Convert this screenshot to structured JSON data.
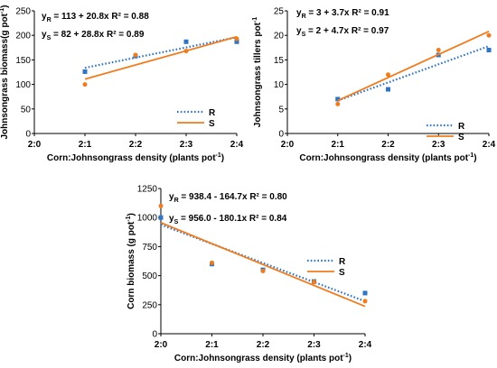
{
  "figure": {
    "axis_color": "#000000",
    "colors": {
      "R": "#2f75c6",
      "S": "#f07c1e"
    }
  },
  "chart_data": [
    {
      "id": "jg-biomass",
      "type": "scatter",
      "xlabel": "Corn:Johnsongrass density (plants pot",
      "xlabel_sup": "-1",
      "xlabel_tail": ")",
      "ylabel": "Johnsongrass biomass(g pot",
      "ylabel_sup": "-1",
      "ylabel_tail": ")",
      "categories": [
        "2:0",
        "2:1",
        "2:2",
        "2:3",
        "2:4"
      ],
      "ylim": [
        0,
        250
      ],
      "yticks": [
        0,
        50,
        100,
        150,
        200,
        250
      ],
      "grid": false,
      "legend_position": "right",
      "series": [
        {
          "name": "R",
          "line_style": "dotted",
          "marker": "square",
          "points": [
            [
              1,
              126
            ],
            [
              2,
              158
            ],
            [
              3,
              187
            ],
            [
              4,
              187
            ]
          ],
          "fit": {
            "intercept": 113,
            "slope": 20.8
          }
        },
        {
          "name": "S",
          "line_style": "solid",
          "marker": "circle",
          "points": [
            [
              1,
              100
            ],
            [
              2,
              160
            ],
            [
              3,
              168
            ],
            [
              4,
              193
            ]
          ],
          "fit": {
            "intercept": 82,
            "slope": 28.8
          }
        }
      ],
      "equations": [
        {
          "y": "y",
          "sub": "R",
          "text": " = 113 + 20.8x",
          "r2": "R² = 0.88"
        },
        {
          "y": "y",
          "sub": "S",
          "text": " = 82 + 28.8x",
          "r2": "R² = 0.89"
        }
      ]
    },
    {
      "id": "jg-tillers",
      "type": "scatter",
      "xlabel": "Corn:Johnsongrass density (plants pot",
      "xlabel_sup": "-1",
      "xlabel_tail": ")",
      "ylabel": "Johnsongrass tillers pot",
      "ylabel_sup": "-1",
      "ylabel_tail": "",
      "categories": [
        "2:0",
        "2:1",
        "2:2",
        "2:3",
        "2:4"
      ],
      "ylim": [
        0,
        25
      ],
      "yticks": [
        0,
        5,
        10,
        15,
        20,
        25
      ],
      "grid": false,
      "legend_position": "right",
      "series": [
        {
          "name": "R",
          "line_style": "dotted",
          "marker": "square",
          "points": [
            [
              1,
              7
            ],
            [
              2,
              9
            ],
            [
              3,
              16
            ],
            [
              4,
              17
            ]
          ],
          "fit": {
            "intercept": 3,
            "slope": 3.7
          }
        },
        {
          "name": "S",
          "line_style": "solid",
          "marker": "circle",
          "points": [
            [
              1,
              6
            ],
            [
              2,
              12
            ],
            [
              3,
              17
            ],
            [
              4,
              20
            ]
          ],
          "fit": {
            "intercept": 2,
            "slope": 4.7
          }
        }
      ],
      "equations": [
        {
          "y": "y",
          "sub": "R",
          "text": " = 3 + 3.7x",
          "r2": "R² = 0.91"
        },
        {
          "y": "y",
          "sub": "S",
          "text": " = 2 + 4.7x",
          "r2": "R² = 0.97"
        }
      ]
    },
    {
      "id": "corn-biomass",
      "type": "scatter",
      "xlabel": "Corn:Johnsongrass density (plants pot",
      "xlabel_sup": "-1",
      "xlabel_tail": ")",
      "ylabel": "Corn biomass (g pot",
      "ylabel_sup": "-1",
      "ylabel_tail": ")",
      "categories": [
        "2:0",
        "2:1",
        "2:2",
        "2:3",
        "2:4"
      ],
      "ylim": [
        0,
        1250
      ],
      "yticks": [
        0,
        250,
        500,
        750,
        1000,
        1250
      ],
      "grid": false,
      "legend_position": "right",
      "series": [
        {
          "name": "R",
          "line_style": "dotted",
          "marker": "square",
          "points": [
            [
              0,
              1000
            ],
            [
              1,
              600
            ],
            [
              2,
              550
            ],
            [
              3,
              450
            ],
            [
              4,
              350
            ]
          ],
          "fit": {
            "intercept": 938.4,
            "slope": -164.7
          }
        },
        {
          "name": "S",
          "line_style": "solid",
          "marker": "circle",
          "points": [
            [
              0,
              1100
            ],
            [
              1,
              610
            ],
            [
              2,
              540
            ],
            [
              3,
              445
            ],
            [
              4,
              280
            ]
          ],
          "fit": {
            "intercept": 956.0,
            "slope": -180.1
          }
        }
      ],
      "equations": [
        {
          "y": "y",
          "sub": "R",
          "text": " = 938.4 - 164.7x",
          "r2": "R² = 0.80"
        },
        {
          "y": "y",
          "sub": "S",
          "text": " = 956.0 - 180.1x",
          "r2": "R² = 0.84"
        }
      ]
    }
  ]
}
